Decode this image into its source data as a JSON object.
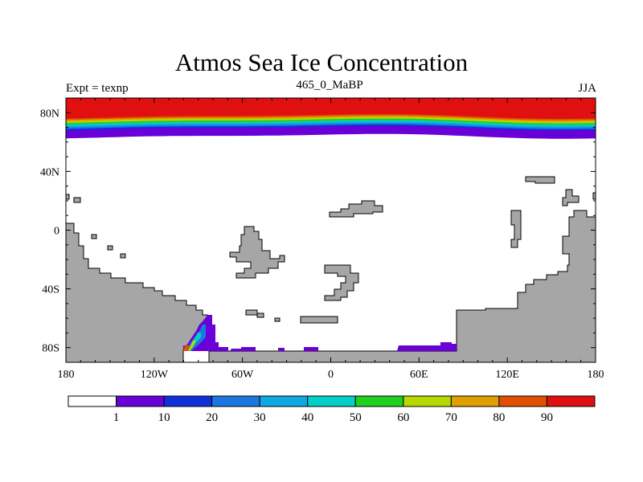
{
  "plot": {
    "title": "Atmos Sea Ice Concentration",
    "subtitle_center": "465_0_MaBP",
    "subtitle_left": "Expt = texnp",
    "subtitle_right": "JJA"
  },
  "colors": {
    "land": "#a6a6a6",
    "ocean": "#ffffff",
    "outline": "#000000"
  },
  "chart_data": {
    "type": "heatmap",
    "title": "Atmos Sea Ice Concentration",
    "subtitle": "465_0_MaBP",
    "x_range": [
      -180,
      180
    ],
    "y_range": [
      -90,
      90
    ],
    "x_ticks": [
      {
        "value": -180,
        "label": "180"
      },
      {
        "value": -120,
        "label": "120W"
      },
      {
        "value": -60,
        "label": "60W"
      },
      {
        "value": 0,
        "label": "0"
      },
      {
        "value": 60,
        "label": "60E"
      },
      {
        "value": 120,
        "label": "120E"
      },
      {
        "value": 180,
        "label": "180"
      }
    ],
    "y_ticks": [
      {
        "value": 80,
        "label": "80N"
      },
      {
        "value": 40,
        "label": "40N"
      },
      {
        "value": 0,
        "label": "0"
      },
      {
        "value": -40,
        "label": "40S"
      },
      {
        "value": -80,
        "label": "80S"
      }
    ],
    "colorbar": {
      "levels": [
        "1",
        "10",
        "20",
        "30",
        "40",
        "50",
        "60",
        "70",
        "80",
        "90"
      ],
      "colors": [
        "#ffffff",
        "#6a00d8",
        "#1030d8",
        "#1c78e0",
        "#10a8e0",
        "#00d0c8",
        "#20d020",
        "#b8d800",
        "#e0a000",
        "#e05000",
        "#e01010"
      ]
    },
    "northern_ice_bands_lat": [
      {
        "value": 90,
        "lat_bottom": 77.5
      },
      {
        "value": 85,
        "lat_bottom": 76.5
      },
      {
        "value": 75,
        "lat_bottom": 75.5
      },
      {
        "value": 65,
        "lat_bottom": 74.5
      },
      {
        "value": 55,
        "lat_bottom": 73.5
      },
      {
        "value": 45,
        "lat_bottom": 72.5
      },
      {
        "value": 35,
        "lat_bottom": 71.5
      },
      {
        "value": 25,
        "lat_bottom": 70.5
      },
      {
        "value": 15,
        "lat_bottom": 69.5
      },
      {
        "value": 5,
        "lat_bottom": 64
      }
    ]
  }
}
